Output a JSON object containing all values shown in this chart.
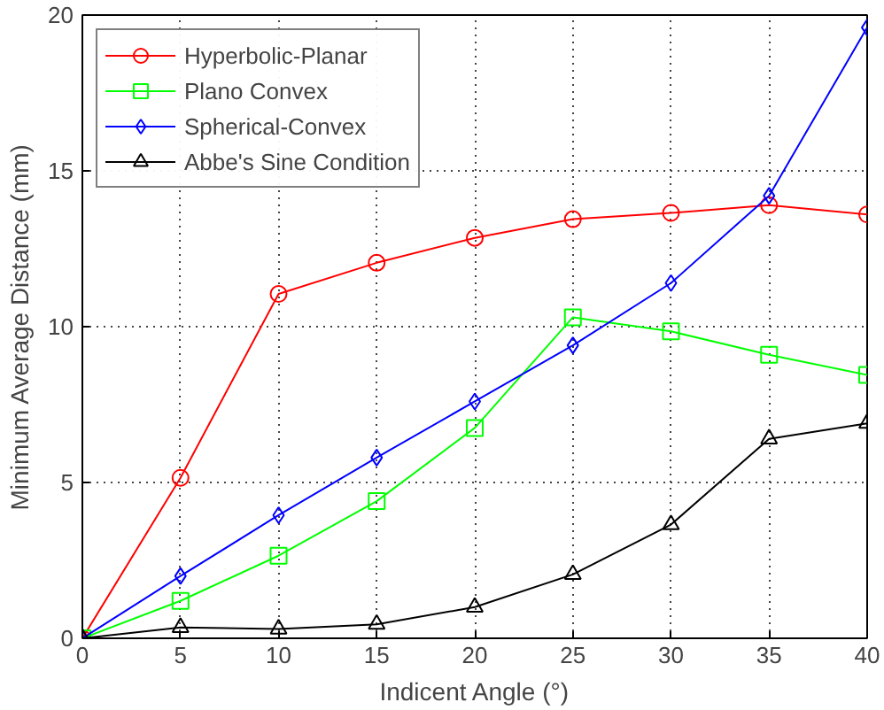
{
  "chart_data": {
    "type": "line",
    "xlabel": "Indicent Angle (°)",
    "ylabel": "Minimum Average Distance (mm)",
    "x": [
      0,
      5,
      10,
      15,
      20,
      25,
      30,
      35,
      40
    ],
    "series": [
      {
        "name": "Hyperbolic-Planar",
        "color": "#ff0000",
        "marker": "circle",
        "values": [
          0,
          5.15,
          11.05,
          12.05,
          12.85,
          13.45,
          13.65,
          13.9,
          13.6
        ]
      },
      {
        "name": "Plano Convex",
        "color": "#00ff00",
        "marker": "square",
        "values": [
          0,
          1.2,
          2.65,
          4.4,
          6.75,
          10.3,
          9.85,
          9.1,
          8.45
        ]
      },
      {
        "name": "Spherical-Convex",
        "color": "#0000ff",
        "marker": "diamond",
        "values": [
          0,
          2.0,
          3.95,
          5.8,
          7.6,
          9.4,
          11.4,
          14.2,
          19.6
        ]
      },
      {
        "name": "Abbe's Sine Condition",
        "color": "#000000",
        "marker": "triangle",
        "values": [
          0,
          0.35,
          0.3,
          0.45,
          1.0,
          2.05,
          3.65,
          6.4,
          6.9
        ]
      }
    ],
    "xlim": [
      0,
      40
    ],
    "ylim": [
      0,
      20
    ],
    "xticks": [
      0,
      5,
      10,
      15,
      20,
      25,
      30,
      35,
      40
    ],
    "yticks": [
      0,
      5,
      10,
      15,
      20
    ],
    "grid": true,
    "legend": "top left",
    "line_style": "solid"
  }
}
